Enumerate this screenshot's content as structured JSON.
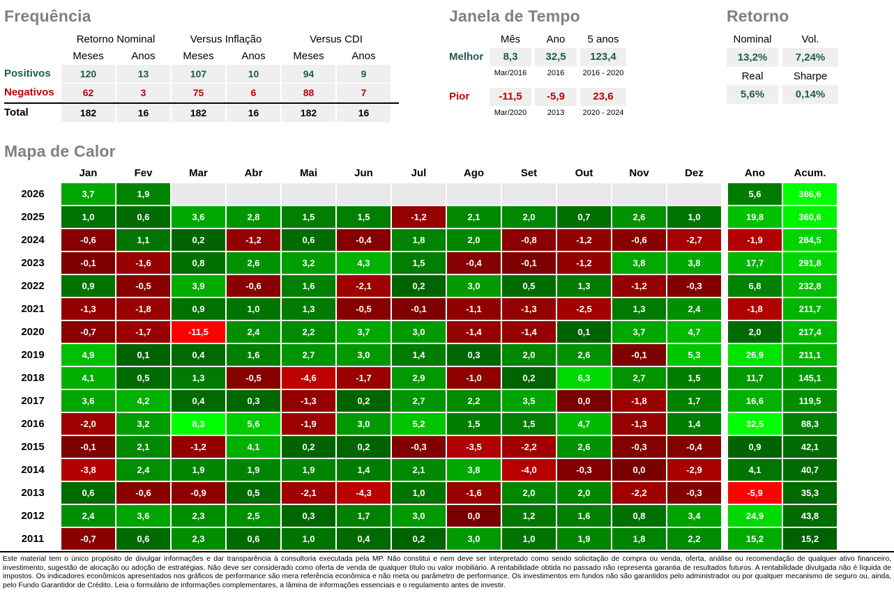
{
  "colors": {
    "positive_teal": "#1E5B50",
    "negative_red": "#C00000",
    "cell_gray": "#EFEFEF",
    "blank_gray": "#E9E9E9",
    "title_gray": "#808080",
    "extreme_negative": "#FF0000",
    "extreme_positive": "#00FF00"
  },
  "frequencia": {
    "title": "Frequência",
    "groups": [
      "Retorno Nominal",
      "Versus Inflação",
      "Versus CDI"
    ],
    "subheaders": [
      "Meses",
      "Anos",
      "Meses",
      "Anos",
      "Meses",
      "Anos"
    ],
    "rows": [
      {
        "label": "Positivos",
        "type": "positive",
        "values": [
          "120",
          "13",
          "107",
          "10",
          "94",
          "9"
        ]
      },
      {
        "label": "Negativos",
        "type": "negative",
        "values": [
          "62",
          "3",
          "75",
          "6",
          "88",
          "7"
        ]
      },
      {
        "label": "Total",
        "type": "total",
        "values": [
          "182",
          "16",
          "182",
          "16",
          "182",
          "16"
        ]
      }
    ]
  },
  "janela": {
    "title": "Janela de Tempo",
    "headers": [
      "Mês",
      "Ano",
      "5 anos"
    ],
    "melhor": {
      "label": "Melhor",
      "values": [
        "8,3",
        "32,5",
        "123,4"
      ],
      "periods": [
        "Mar/2016",
        "2016",
        "2016 - 2020"
      ]
    },
    "pior": {
      "label": "Pior",
      "values": [
        "-11,5",
        "-5,9",
        "23,6"
      ],
      "periods": [
        "Mar/2020",
        "2013",
        "2020 - 2024"
      ]
    }
  },
  "retorno": {
    "title": "Retorno",
    "pairs": [
      {
        "headers": [
          "Nominal",
          "Vol."
        ],
        "values": [
          "13,2%",
          "7,24%"
        ]
      },
      {
        "headers": [
          "Real",
          "Sharpe"
        ],
        "values": [
          "5,6%",
          "0,14%"
        ]
      }
    ]
  },
  "chart_data": {
    "type": "heatmap",
    "title": "Mapa de Calor",
    "month_columns": [
      "Jan",
      "Fev",
      "Mar",
      "Abr",
      "Mai",
      "Jun",
      "Jul",
      "Ago",
      "Set",
      "Out",
      "Nov",
      "Dez"
    ],
    "extra_columns": [
      "Ano",
      "Acum."
    ],
    "scale": {
      "month_min": -11.5,
      "month_max": 8.3,
      "ano_min": -5.9,
      "ano_max": 32.5,
      "acum_base": 15.2,
      "acum_max": 386.6
    },
    "neg_zero": [
      {
        "year": "2017",
        "month": "Out"
      },
      {
        "year": "2014",
        "month": "Nov"
      },
      {
        "year": "2012",
        "month": "Ago"
      }
    ],
    "rows": [
      {
        "year": "2026",
        "months": [
          "3,7",
          "1,9",
          "",
          "",
          "",
          "",
          "",
          "",
          "",
          "",
          "",
          ""
        ],
        "ano": "5,6",
        "acum": "386,6"
      },
      {
        "year": "2025",
        "months": [
          "1,0",
          "0,6",
          "3,6",
          "2,8",
          "1,5",
          "1,5",
          "-1,2",
          "2,1",
          "2,0",
          "0,7",
          "2,6",
          "1,0"
        ],
        "ano": "19,8",
        "acum": "360,6"
      },
      {
        "year": "2024",
        "months": [
          "-0,6",
          "1,1",
          "0,2",
          "-1,2",
          "0,6",
          "-0,4",
          "1,8",
          "2,0",
          "-0,8",
          "-1,2",
          "-0,6",
          "-2,7"
        ],
        "ano": "-1,9",
        "acum": "284,5"
      },
      {
        "year": "2023",
        "months": [
          "-0,1",
          "-1,6",
          "0,8",
          "2,6",
          "3,2",
          "4,3",
          "1,5",
          "-0,4",
          "-0,1",
          "-1,2",
          "3,8",
          "3,8"
        ],
        "ano": "17,7",
        "acum": "291,8"
      },
      {
        "year": "2022",
        "months": [
          "0,9",
          "-0,5",
          "3,9",
          "-0,6",
          "1,6",
          "-2,1",
          "0,2",
          "3,0",
          "0,5",
          "1,3",
          "-1,2",
          "-0,3"
        ],
        "ano": "6,8",
        "acum": "232,8"
      },
      {
        "year": "2021",
        "months": [
          "-1,3",
          "-1,8",
          "0,9",
          "1,0",
          "1,3",
          "-0,5",
          "-0,1",
          "-1,1",
          "-1,3",
          "-2,5",
          "1,3",
          "2,4"
        ],
        "ano": "-1,8",
        "acum": "211,7"
      },
      {
        "year": "2020",
        "months": [
          "-0,7",
          "-1,7",
          "-11,5",
          "2,4",
          "2,2",
          "3,7",
          "3,0",
          "-1,4",
          "-1,4",
          "0,1",
          "3,7",
          "4,7"
        ],
        "ano": "2,0",
        "acum": "217,4"
      },
      {
        "year": "2019",
        "months": [
          "4,9",
          "0,1",
          "0,4",
          "1,6",
          "2,7",
          "3,0",
          "1,4",
          "0,3",
          "2,0",
          "2,6",
          "-0,1",
          "5,3"
        ],
        "ano": "26,9",
        "acum": "211,1"
      },
      {
        "year": "2018",
        "months": [
          "4,1",
          "0,5",
          "1,3",
          "-0,5",
          "-4,6",
          "-1,7",
          "2,9",
          "-1,0",
          "0,2",
          "6,3",
          "2,7",
          "1,5"
        ],
        "ano": "11,7",
        "acum": "145,1"
      },
      {
        "year": "2017",
        "months": [
          "3,6",
          "4,2",
          "0,4",
          "0,3",
          "-1,3",
          "0,2",
          "2,7",
          "2,2",
          "3,5",
          "0,0",
          "-1,8",
          "1,7"
        ],
        "ano": "16,6",
        "acum": "119,5"
      },
      {
        "year": "2016",
        "months": [
          "-2,0",
          "3,2",
          "8,3",
          "5,6",
          "-1,9",
          "3,0",
          "5,2",
          "1,5",
          "1,5",
          "4,7",
          "-1,3",
          "1,4"
        ],
        "ano": "32,5",
        "acum": "88,3"
      },
      {
        "year": "2015",
        "months": [
          "-0,1",
          "2,1",
          "-1,2",
          "4,1",
          "0,2",
          "0,2",
          "-0,3",
          "-3,5",
          "-2,2",
          "2,6",
          "-0,3",
          "-0,4"
        ],
        "ano": "0,9",
        "acum": "42,1"
      },
      {
        "year": "2014",
        "months": [
          "-3,8",
          "2,4",
          "1,9",
          "1,9",
          "1,9",
          "1,4",
          "2,1",
          "3,8",
          "-4,0",
          "-0,3",
          "0,0",
          "-2,9"
        ],
        "ano": "4,1",
        "acum": "40,7"
      },
      {
        "year": "2013",
        "months": [
          "0,6",
          "-0,6",
          "-0,9",
          "0,5",
          "-2,1",
          "-4,3",
          "1,0",
          "-1,6",
          "2,0",
          "2,0",
          "-2,2",
          "-0,3"
        ],
        "ano": "-5,9",
        "acum": "35,3"
      },
      {
        "year": "2012",
        "months": [
          "2,4",
          "3,6",
          "2,3",
          "2,5",
          "0,3",
          "1,7",
          "3,0",
          "0,0",
          "1,2",
          "1,6",
          "0,8",
          "3,4"
        ],
        "ano": "24,9",
        "acum": "43,8"
      },
      {
        "year": "2011",
        "months": [
          "-0,7",
          "0,6",
          "2,3",
          "0,6",
          "1,0",
          "0,4",
          "0,2",
          "3,0",
          "1,0",
          "1,9",
          "1,8",
          "2,2"
        ],
        "ano": "15,2",
        "acum": "15,2"
      }
    ]
  },
  "footer": {
    "disclaimer": "Este material tem o único propósito de divulgar informações e dar transparência à consultoria executada pela MP. Não constitui e nem deve ser interpretado como sendo solicitação de compra ou venda, oferta, análise ou recomendação de qualquer ativo financeiro, investimento, sugestão de alocação ou adoção de estratégias. Não deve ser considerado como oferta de venda de qualquer título ou valor mobiliário. A rentabilidade obtida no passado não representa garantia de resultados futuros. A rentabilidade divulgada não é líquida de impostos. Os indicadores econômicos apresentados nos gráficos de performance são mera referência econômica e não meta ou parâmetro de performance. Os investimentos em fundos não são garantidos pelo administrador ou por qualquer mecanismo de seguro ou, ainda, pelo Fundo Garantidor de Crédito. Leia o formulário de informações complementares, a lâmina de informações essenciais e o regulamento antes de investir."
  }
}
